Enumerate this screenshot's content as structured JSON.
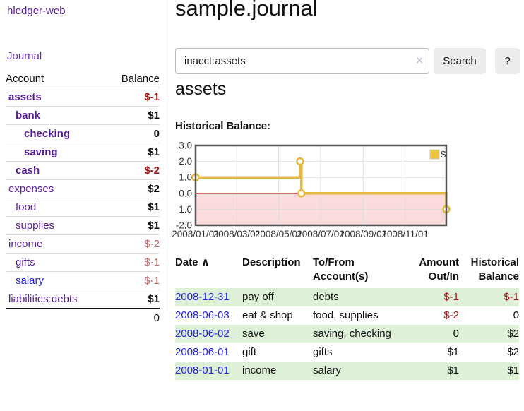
{
  "app": {
    "brand": "hledger-web",
    "nav_journal": "Journal"
  },
  "sidebar": {
    "table": {
      "col_account": "Account",
      "col_balance": "Balance"
    },
    "accounts": [
      {
        "name": "assets",
        "balance": "$-1",
        "depth": 1,
        "bold": true,
        "neg": "strong"
      },
      {
        "name": "bank",
        "balance": "$1",
        "depth": 2,
        "bold": true
      },
      {
        "name": "checking",
        "balance": "0",
        "depth": 3,
        "bold": true
      },
      {
        "name": "saving",
        "balance": "$1",
        "depth": 3,
        "bold": true
      },
      {
        "name": "cash",
        "balance": "$-2",
        "depth": 2,
        "bold": true,
        "neg": "strong"
      },
      {
        "name": "expenses",
        "balance": "$2",
        "depth": 1
      },
      {
        "name": "food",
        "balance": "$1",
        "depth": 2
      },
      {
        "name": "supplies",
        "balance": "$1",
        "depth": 2
      },
      {
        "name": "income",
        "balance": "$-2",
        "depth": 1,
        "neg": "muted"
      },
      {
        "name": "gifts",
        "balance": "$-1",
        "depth": 2,
        "neg": "muted"
      },
      {
        "name": "salary",
        "balance": "$-1",
        "depth": 2,
        "neg": "muted",
        "link": "blue"
      },
      {
        "name": "liabilities:debts",
        "balance": "$1",
        "depth": 1
      }
    ],
    "total": "0"
  },
  "header": {
    "title": "sample.journal"
  },
  "search": {
    "value": "inacct:assets",
    "clear_icon": "×",
    "button": "Search",
    "help_button": "?"
  },
  "account_page": {
    "title": "assets",
    "chart_heading": "Historical Balance:"
  },
  "chart_data": {
    "type": "line",
    "step": true,
    "title": "Historical Balance",
    "legend": [
      {
        "label": "$",
        "color": "#ecc63f"
      }
    ],
    "ylim": [
      -2,
      3
    ],
    "y_ticks": [
      3.0,
      2.0,
      1.0,
      0.0,
      -1.0,
      -2.0
    ],
    "x_tick_labels": [
      "2008/01/01",
      "2008/03/01",
      "2008/05/01",
      "2008/07/01",
      "2008/09/01",
      "2008/11/01"
    ],
    "x_range": [
      "2008-01-01",
      "2008-12-31"
    ],
    "series": [
      {
        "name": "$",
        "points": [
          [
            "2008-01-01",
            1
          ],
          [
            "2008-06-01",
            2
          ],
          [
            "2008-06-03",
            0
          ],
          [
            "2008-12-31",
            -1
          ]
        ]
      }
    ],
    "line_color": "#e6b73e",
    "zero_line_color": "#8b0000",
    "negative_region_color": "#fbdcdc",
    "grid": true,
    "legend_position": "top-right"
  },
  "register": {
    "headers": {
      "date": "Date",
      "sort_indicator": "∧",
      "description": "Description",
      "accounts": "To/From Account(s)",
      "amount": "Amount Out/In",
      "balance": "Historical Balance"
    },
    "rows": [
      {
        "date": "2008-12-31",
        "description": "pay off",
        "accounts": "debts",
        "amount": "$-1",
        "balance": "$-1",
        "amount_neg": true,
        "balance_neg": true,
        "shade": true
      },
      {
        "date": "2008-06-03",
        "description": "eat & shop",
        "accounts": "food, supplies",
        "amount": "$-2",
        "balance": "0",
        "amount_neg": true
      },
      {
        "date": "2008-06-02",
        "description": "save",
        "accounts": "saving, checking",
        "amount": "0",
        "balance": "$2",
        "shade": true
      },
      {
        "date": "2008-06-01",
        "description": "gift",
        "accounts": "gifts",
        "amount": "$1",
        "balance": "$2"
      },
      {
        "date": "2008-01-01",
        "description": "income",
        "accounts": "salary",
        "amount": "$1",
        "balance": "$1",
        "shade": true
      }
    ]
  }
}
